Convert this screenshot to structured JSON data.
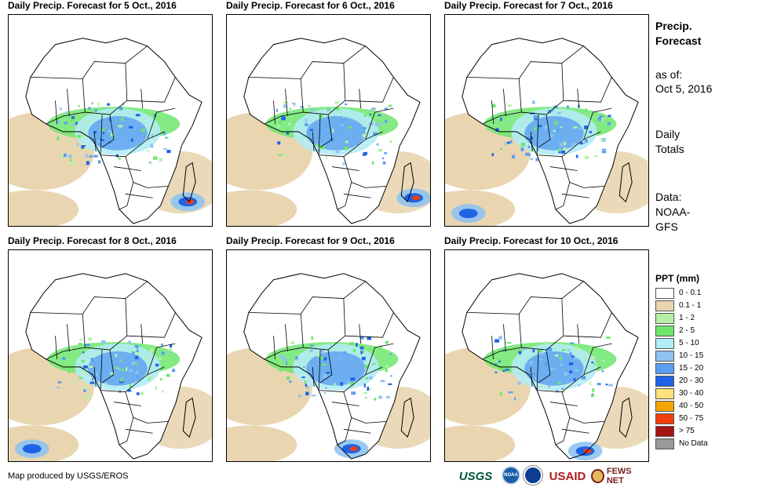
{
  "panels": [
    {
      "title": "Daily Precip. Forecast for 5 Oct., 2016"
    },
    {
      "title": "Daily Precip. Forecast for 6 Oct., 2016"
    },
    {
      "title": "Daily Precip. Forecast for 7 Oct., 2016"
    },
    {
      "title": "Daily Precip. Forecast for 8 Oct., 2016"
    },
    {
      "title": "Daily Precip. Forecast for 9 Oct., 2016"
    },
    {
      "title": "Daily Precip. Forecast for 10 Oct., 2016"
    }
  ],
  "info": {
    "heading_line1": "Precip.",
    "heading_line2": "Forecast",
    "asof_label": "as of:",
    "asof_date": "Oct 5, 2016",
    "totals_line1": "Daily",
    "totals_line2": "Totals",
    "data_line1": "Data:",
    "data_line2": "NOAA-",
    "data_line3": "GFS"
  },
  "legend": {
    "title": "PPT (mm)",
    "items": [
      {
        "label": "0 - 0.1",
        "color": "#ffffff"
      },
      {
        "label": "0.1 - 1",
        "color": "#e9d6b1"
      },
      {
        "label": "1 - 2",
        "color": "#b6f0a8"
      },
      {
        "label": "2 - 5",
        "color": "#6ee66e"
      },
      {
        "label": "5 - 10",
        "color": "#b2ecf5"
      },
      {
        "label": "10 - 15",
        "color": "#8fc3f0"
      },
      {
        "label": "15 - 20",
        "color": "#5b9ff0"
      },
      {
        "label": "20 - 30",
        "color": "#1e63e6"
      },
      {
        "label": "30 - 40",
        "color": "#ffe27a"
      },
      {
        "label": "40 - 50",
        "color": "#f5a300"
      },
      {
        "label": "50 - 75",
        "color": "#f23d0c"
      },
      {
        "label": "> 75",
        "color": "#a31414"
      },
      {
        "label": "No Data",
        "color": "#9a9a9a"
      }
    ]
  },
  "footer": {
    "credit": "Map produced by USGS/EROS"
  },
  "logos": {
    "usgs": "USGS",
    "noaa": "NOAA",
    "usaid_main": "USAID",
    "fews": "FEWS NET"
  }
}
